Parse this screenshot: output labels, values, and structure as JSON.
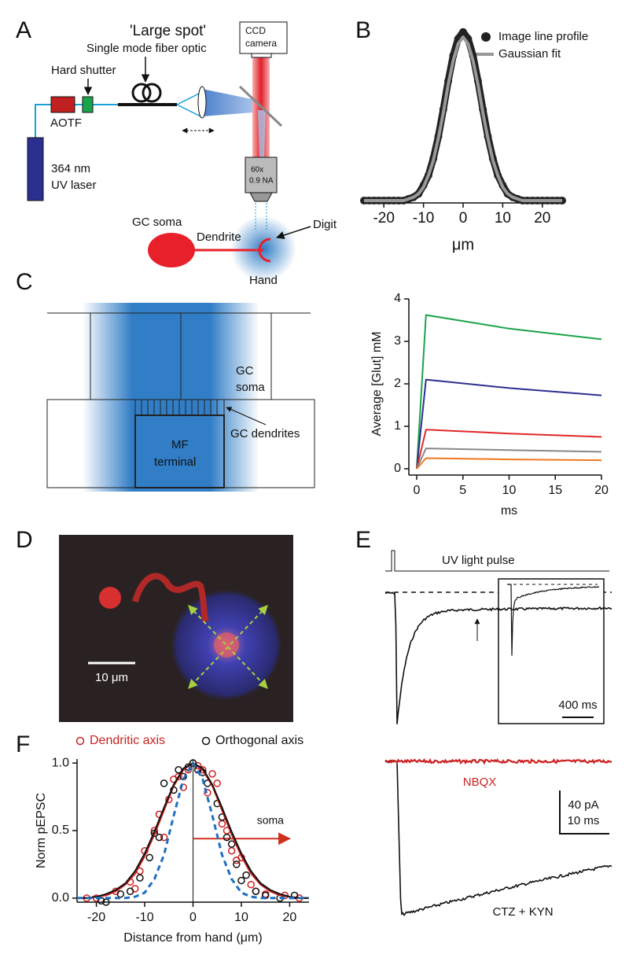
{
  "panel_labels": [
    "A",
    "B",
    "C",
    "D",
    "E",
    "F"
  ],
  "diagram_a": {
    "title": "'Large spot'",
    "fiber": "Single mode fiber optic",
    "shutter": "Hard shutter",
    "aotf": "AOTF",
    "laser": [
      "364 nm",
      "UV laser"
    ],
    "camera": [
      "CCD",
      "camera"
    ],
    "objective": [
      "60x",
      "0.9 NA"
    ],
    "soma": "GC soma",
    "dendrite": "Dendrite",
    "digit": "Digit",
    "hand": "Hand"
  },
  "diagram_c": {
    "soma": [
      "GC",
      "soma"
    ],
    "terminal": [
      "MF",
      "terminal"
    ],
    "dendrites": "GC dendrites"
  },
  "image_d": {
    "scale_bar": "10 μm"
  },
  "traces_e": {
    "pulse": "UV light pulse",
    "inset_scale": "400 ms",
    "nbqx": "NBQX",
    "scale": [
      "40 pA",
      "10 ms"
    ],
    "ctz": "CTZ + KYN"
  },
  "chart_data": [
    {
      "type": "line",
      "xlabel": "μm",
      "x": [
        -25,
        -23.75,
        -22.5,
        -21.25,
        -20,
        -18.75,
        -17.5,
        -16.25,
        -15,
        -13.75,
        -12.5,
        -11.25,
        -10,
        -8.75,
        -7.5,
        -6.25,
        -5,
        -3.75,
        -2.5,
        -1.25,
        0,
        1.25,
        2.5,
        3.75,
        5,
        6.25,
        7.5,
        8.75,
        10,
        11.25,
        12.5,
        13.75,
        15,
        16.25,
        17.5,
        18.75,
        20,
        21.25,
        22.5,
        23.75,
        25
      ],
      "series": [
        {
          "name": "Image line profile",
          "color": "#222222",
          "marker": "dot",
          "values": [
            0,
            0,
            0,
            0,
            0,
            0,
            0,
            0,
            0,
            0.01,
            0.02,
            0.04,
            0.09,
            0.15,
            0.25,
            0.38,
            0.54,
            0.71,
            0.86,
            0.96,
            1.0,
            0.96,
            0.86,
            0.71,
            0.54,
            0.38,
            0.25,
            0.15,
            0.09,
            0.04,
            0.02,
            0.01,
            0,
            0,
            0,
            0,
            0,
            0,
            0,
            0,
            0
          ]
        },
        {
          "name": "Gaussian fit",
          "color": "#999999",
          "values": [
            0,
            0,
            0,
            0,
            0,
            0,
            0,
            0,
            0,
            0.01,
            0.02,
            0.04,
            0.08,
            0.15,
            0.24,
            0.37,
            0.52,
            0.69,
            0.83,
            0.93,
            0.97,
            0.93,
            0.83,
            0.69,
            0.52,
            0.37,
            0.24,
            0.15,
            0.08,
            0.04,
            0.02,
            0.01,
            0,
            0,
            0,
            0,
            0,
            0,
            0,
            0,
            0
          ]
        }
      ],
      "xlim": [
        -25,
        25
      ],
      "xticks": [
        -20,
        -10,
        0,
        10,
        20
      ],
      "ylim": [
        0,
        1.05
      ],
      "legend": "top right"
    },
    {
      "type": "line",
      "xlabel": "ms",
      "ylabel": "Average [Glut] mM",
      "x": [
        0,
        1,
        10,
        20
      ],
      "series": [
        {
          "color": "#1aa34a",
          "values": [
            0,
            3.62,
            3.3,
            3.05
          ]
        },
        {
          "color": "#2b2f8f",
          "values": [
            0,
            2.1,
            1.9,
            1.73
          ]
        },
        {
          "color": "#e02828",
          "values": [
            0,
            0.92,
            0.83,
            0.75
          ]
        },
        {
          "color": "#888888",
          "values": [
            0,
            0.48,
            0.44,
            0.4
          ]
        },
        {
          "color": "#f07820",
          "values": [
            0,
            0.25,
            0.22,
            0.2
          ]
        }
      ],
      "xlim": [
        0,
        20
      ],
      "xticks": [
        0,
        5,
        10,
        15,
        20
      ],
      "ylim": [
        0,
        4
      ],
      "yticks": [
        0,
        1,
        2,
        3,
        4
      ]
    },
    {
      "type": "scatter",
      "xlabel": "Distance from hand (μm)",
      "ylabel": "Norm pEPSC",
      "annotation": "soma",
      "series": [
        {
          "name": "Dendritic axis",
          "color": "#cc2222",
          "marker": "open-circle",
          "x": [
            -22,
            -20,
            -16,
            -13,
            -12,
            -11,
            -10,
            -8,
            -7,
            -6,
            -5,
            -4,
            -3,
            -2,
            -1,
            0,
            1,
            2,
            3,
            4,
            5,
            6,
            7,
            8,
            9,
            10,
            12,
            13,
            15,
            19,
            22
          ],
          "values": [
            0,
            0,
            0.05,
            0.12,
            0.07,
            0.2,
            0.35,
            0.5,
            0.62,
            0.45,
            0.73,
            0.88,
            0.9,
            0.82,
            0.95,
            1.0,
            0.98,
            0.95,
            0.78,
            0.92,
            0.85,
            0.55,
            0.5,
            0.35,
            0.28,
            0.3,
            0.1,
            0.05,
            0.03,
            0.02,
            0
          ]
        },
        {
          "name": "Orthogonal axis",
          "color": "#111111",
          "marker": "open-circle",
          "x": [
            -19,
            -18,
            -15,
            -13,
            -11,
            -9,
            -8,
            -7,
            -6,
            -4,
            -3,
            -2,
            -1,
            0,
            1,
            2,
            3,
            5,
            6,
            7,
            8,
            9,
            10,
            11,
            13,
            15,
            18,
            21
          ],
          "values": [
            -0.02,
            -0.03,
            0.03,
            0.05,
            0.15,
            0.3,
            0.48,
            0.45,
            0.85,
            0.8,
            0.95,
            0.9,
            0.97,
            1.0,
            0.95,
            0.93,
            0.85,
            0.7,
            0.6,
            0.45,
            0.4,
            0.25,
            0.13,
            0.17,
            0.05,
            0.02,
            0,
            0.02
          ]
        },
        {
          "color": "#cc2222",
          "x": [
            -24,
            -22,
            -20,
            -18,
            -16,
            -14,
            -12,
            -10,
            -8,
            -6,
            -4,
            -2,
            0,
            2,
            4,
            6,
            8,
            10,
            12,
            14,
            16,
            18,
            20,
            22,
            24
          ],
          "values": [
            0,
            0,
            0.01,
            0.02,
            0.05,
            0.1,
            0.18,
            0.31,
            0.47,
            0.65,
            0.83,
            0.95,
            1.0,
            0.95,
            0.83,
            0.65,
            0.47,
            0.31,
            0.18,
            0.1,
            0.05,
            0.02,
            0.01,
            0,
            0
          ]
        },
        {
          "color": "#111111",
          "x": [
            -24,
            -22,
            -20,
            -18,
            -16,
            -14,
            -12,
            -10,
            -8,
            -6,
            -4,
            -2,
            0,
            2,
            4,
            6,
            8,
            10,
            12,
            14,
            16,
            18,
            20,
            22,
            24
          ],
          "values": [
            0,
            0,
            0.01,
            0.03,
            0.06,
            0.11,
            0.2,
            0.33,
            0.49,
            0.67,
            0.84,
            0.96,
            1.0,
            0.96,
            0.84,
            0.67,
            0.49,
            0.33,
            0.2,
            0.11,
            0.06,
            0.03,
            0.01,
            0,
            0
          ]
        },
        {
          "color": "#1f6fc0",
          "dash": true,
          "x": [
            -24,
            -22,
            -20,
            -18,
            -16,
            -14,
            -12,
            -10,
            -8,
            -6,
            -4,
            -2,
            0,
            2,
            4,
            6,
            8,
            10,
            12,
            14,
            16,
            18,
            20,
            22,
            24
          ],
          "values": [
            0,
            0,
            0,
            0,
            0,
            0,
            0.01,
            0.04,
            0.14,
            0.32,
            0.61,
            0.88,
            1.0,
            0.88,
            0.61,
            0.32,
            0.14,
            0.04,
            0.01,
            0,
            0,
            0,
            0,
            0,
            0
          ]
        }
      ],
      "xlim": [
        -24,
        24
      ],
      "xticks": [
        -20,
        -10,
        0,
        10,
        20
      ],
      "ylim": [
        -0.03,
        1.03
      ],
      "yticks": [
        {
          "value": 0,
          "label": "0.0"
        },
        {
          "value": 0.5,
          "label": "0.5"
        },
        {
          "value": 1,
          "label": "1.0"
        }
      ],
      "legend": "top"
    }
  ]
}
